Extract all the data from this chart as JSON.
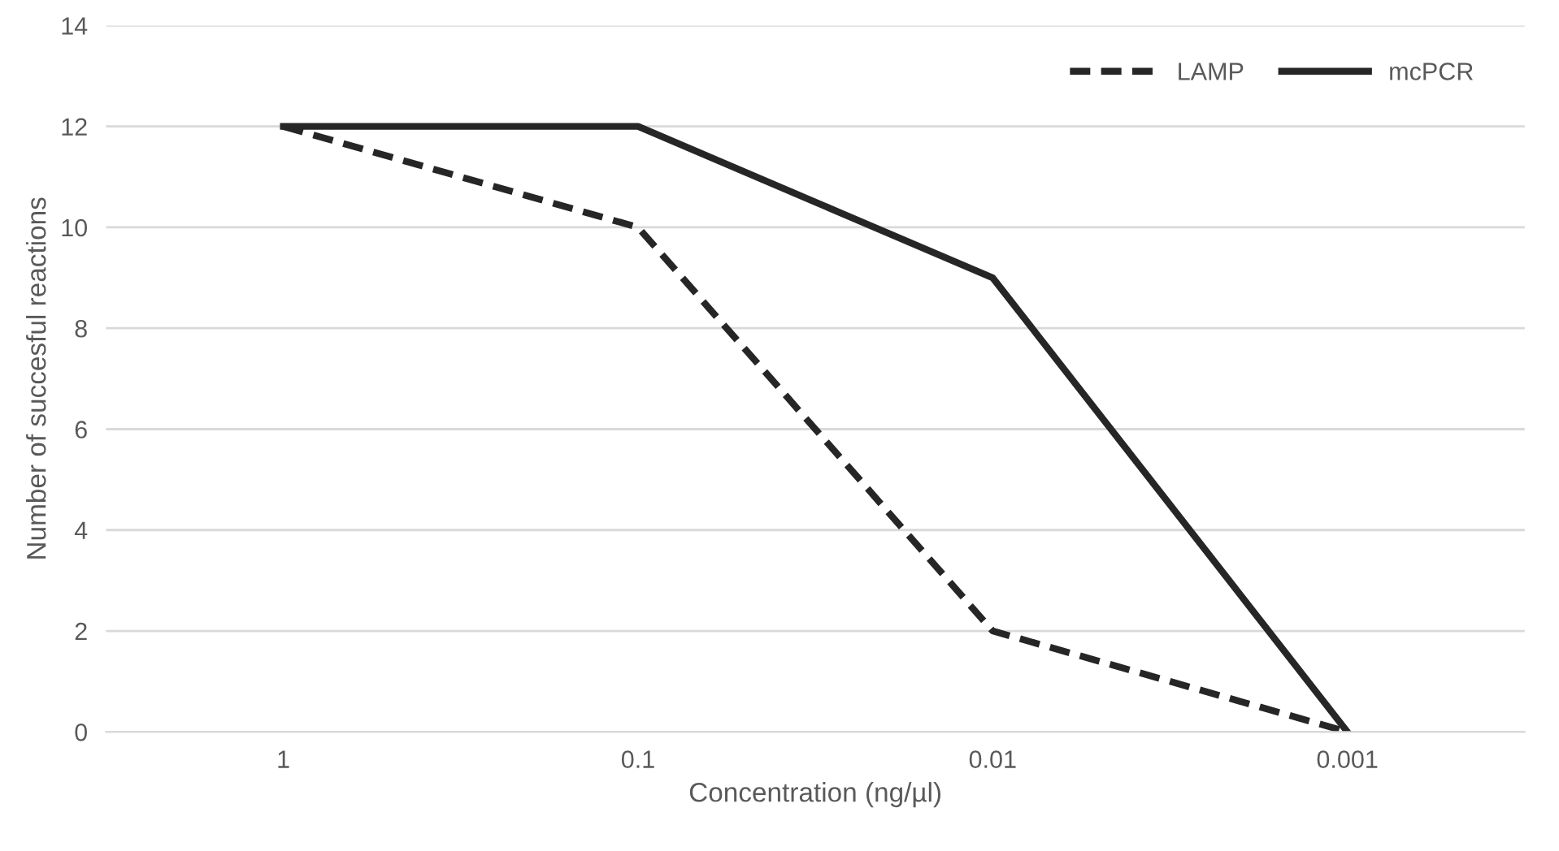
{
  "chart_data": {
    "type": "line",
    "xlabel": "Concentration (ng/µl)",
    "ylabel": "Number of succesful reactions",
    "categories": [
      "1",
      "0.1",
      "0.01",
      "0.001"
    ],
    "series": [
      {
        "name": "LAMP",
        "color": "#262626",
        "values": [
          12,
          10,
          2,
          0
        ],
        "line_style": "dashed"
      },
      {
        "name": "mcPCR",
        "color": "#262626",
        "values": [
          12,
          12,
          9,
          0
        ],
        "line_style": "solid"
      }
    ],
    "ylim": [
      0,
      14
    ],
    "yticks": [
      0,
      2,
      4,
      6,
      8,
      10,
      12,
      14
    ],
    "grid": "y",
    "legend": "top right",
    "marker": "none"
  }
}
